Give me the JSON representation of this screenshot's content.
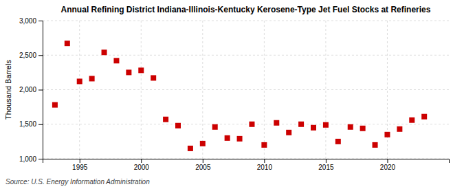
{
  "chart_data": {
    "type": "scatter",
    "title": "Annual Refining District Indiana-Illinois-Kentucky Kerosene-Type Jet Fuel Stocks at Refineries",
    "y_label": "Thousand Barrels",
    "source": "Source: U.S. Energy Information Administration",
    "x": [
      1993,
      1994,
      1995,
      1996,
      1997,
      1998,
      1999,
      2000,
      2001,
      2002,
      2003,
      2004,
      2005,
      2006,
      2007,
      2008,
      2009,
      2010,
      2011,
      2012,
      2013,
      2014,
      2015,
      2016,
      2017,
      2018,
      2019,
      2020,
      2021,
      2022,
      2023
    ],
    "values": [
      1780,
      2670,
      2120,
      2160,
      2540,
      2420,
      2250,
      2280,
      2170,
      1570,
      1480,
      1150,
      1220,
      1460,
      1300,
      1290,
      1500,
      1200,
      1520,
      1380,
      1500,
      1450,
      1490,
      1250,
      1460,
      1440,
      1200,
      1350,
      1430,
      1560,
      1610
    ],
    "color": "#cc0000",
    "marker": "square",
    "xlim": [
      1992,
      2025
    ],
    "xticks": [
      1995,
      2000,
      2005,
      2010,
      2015,
      2020
    ],
    "ylim": [
      1000,
      3000
    ],
    "yticks": [
      {
        "value": 1000,
        "label": "1,000"
      },
      {
        "value": 1500,
        "label": "1,500"
      },
      {
        "value": 2000,
        "label": "2,000"
      },
      {
        "value": 2500,
        "label": "2,500"
      },
      {
        "value": 3000,
        "label": "3,000"
      }
    ],
    "grid": true
  }
}
